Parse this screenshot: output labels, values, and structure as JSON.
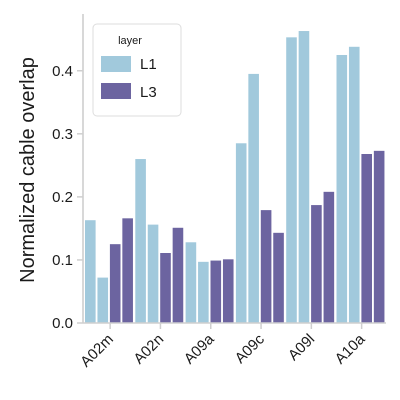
{
  "chart_data": {
    "type": "bar",
    "title": "",
    "xlabel": "",
    "ylabel": "Normalized cable overlap",
    "ylim": [
      0,
      0.49
    ],
    "yticks": [
      0.0,
      0.1,
      0.2,
      0.3,
      0.4
    ],
    "ytick_labels": [
      "0.0",
      "0.1",
      "0.2",
      "0.3",
      "0.4"
    ],
    "categories": [
      "A02m",
      "A02n",
      "A09a",
      "A09c",
      "A09l",
      "A10a"
    ],
    "legend": {
      "title": "layer",
      "position": "top-left"
    },
    "grid": false,
    "series": [
      {
        "name": "L1",
        "color": "#a1c9dc",
        "values": [
          [
            0.163,
            0.072
          ],
          [
            0.26,
            0.156
          ],
          [
            0.128,
            0.097
          ],
          [
            0.285,
            0.395
          ],
          [
            0.453,
            0.463
          ],
          [
            0.425,
            0.438
          ]
        ]
      },
      {
        "name": "L3",
        "color": "#6c64a0",
        "values": [
          [
            0.125,
            0.166
          ],
          [
            0.111,
            0.151
          ],
          [
            0.099,
            0.101
          ],
          [
            0.179,
            0.143
          ],
          [
            0.187,
            0.208
          ],
          [
            0.268,
            0.273
          ]
        ]
      }
    ]
  }
}
